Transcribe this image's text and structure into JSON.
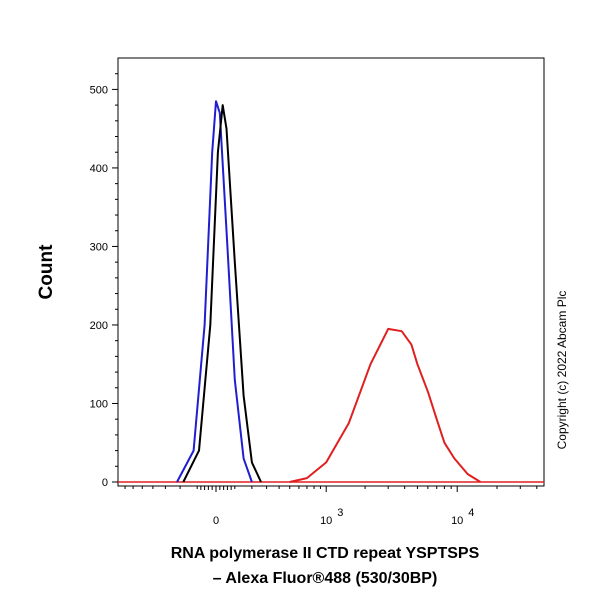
{
  "chart_data": {
    "type": "line",
    "title": "",
    "xlabel_line1": "RNA polymerase II CTD repeat YSPTSPS",
    "xlabel_line2": "– Alexa Fluor®488 (530/30BP)",
    "ylabel": "Count",
    "y_axis": {
      "range": [
        0,
        540
      ],
      "ticks": [
        0,
        100,
        200,
        300,
        400,
        500
      ],
      "tick_labels": [
        "0",
        "100",
        "200",
        "300",
        "400",
        "500"
      ]
    },
    "x_axis": {
      "scale": "biexponential",
      "tick_labels": [
        "0",
        "10",
        "10"
      ],
      "tick_exponents": [
        "",
        "3",
        "4"
      ]
    },
    "copyright": "Copyright (c) 2022 Abcam Plc",
    "series": [
      {
        "color": "#1f1fd0",
        "points": [
          [
            -220,
            0
          ],
          [
            -120,
            40
          ],
          [
            -60,
            200
          ],
          [
            -20,
            420
          ],
          [
            0,
            485
          ],
          [
            20,
            470
          ],
          [
            60,
            300
          ],
          [
            100,
            130
          ],
          [
            150,
            30
          ],
          [
            200,
            0
          ]
        ]
      },
      {
        "color": "#000000",
        "points": [
          [
            -180,
            0
          ],
          [
            -90,
            40
          ],
          [
            -30,
            200
          ],
          [
            10,
            420
          ],
          [
            35,
            480
          ],
          [
            55,
            450
          ],
          [
            100,
            280
          ],
          [
            150,
            110
          ],
          [
            200,
            25
          ],
          [
            260,
            0
          ]
        ]
      },
      {
        "color": "#e02020",
        "points": [
          [
            500,
            0
          ],
          [
            700,
            5
          ],
          [
            1000,
            25
          ],
          [
            1500,
            75
          ],
          [
            2200,
            150
          ],
          [
            3000,
            195
          ],
          [
            3800,
            192
          ],
          [
            4500,
            175
          ],
          [
            5000,
            150
          ],
          [
            6000,
            115
          ],
          [
            7000,
            80
          ],
          [
            8000,
            50
          ],
          [
            9500,
            30
          ],
          [
            12000,
            10
          ],
          [
            15000,
            0
          ]
        ]
      }
    ]
  }
}
